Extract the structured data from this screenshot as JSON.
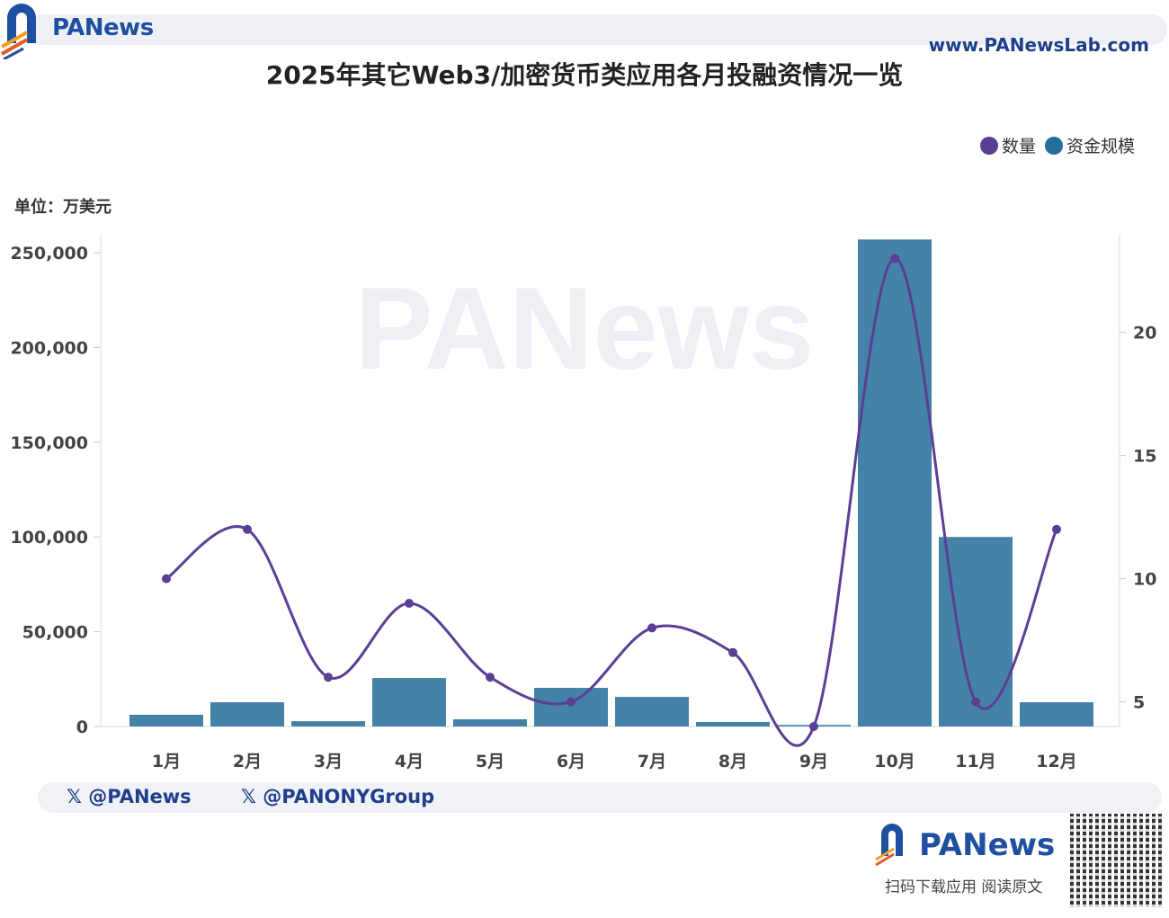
{
  "header": {
    "brand": "PANews",
    "site": "www.PANewsLab.com"
  },
  "footer": {
    "x_handle_1": "@PANews",
    "x_handle_2": "@PANONYGroup",
    "brand": "PANews",
    "qr_caption": "扫码下载应用  阅读原文"
  },
  "watermark": "PANews",
  "colors": {
    "count": "#5b3f94",
    "amount": "#3a7ba3",
    "brand": "#1f4fa0"
  },
  "chart_data": {
    "type": "bar+line",
    "title": "2025年其它Web3/加密货币类应用各月投融资情况一览",
    "unit_label": "单位：万美元",
    "categories": [
      "1月",
      "2月",
      "3月",
      "4月",
      "5月",
      "6月",
      "7月",
      "8月",
      "9月",
      "10月",
      "11月",
      "12月"
    ],
    "series": [
      {
        "name": "资金规模",
        "type": "bar",
        "axis": "left",
        "values": [
          6200,
          12800,
          2800,
          25600,
          3800,
          20400,
          15600,
          2400,
          800,
          257000,
          100000,
          12800
        ]
      },
      {
        "name": "数量",
        "type": "line",
        "axis": "right",
        "values": [
          10,
          12,
          6,
          9,
          6,
          5,
          8,
          7,
          4,
          23,
          5,
          12
        ]
      }
    ],
    "left_axis": {
      "range": [
        0,
        260000
      ],
      "ticks": [
        0,
        50000,
        100000,
        150000,
        200000,
        250000
      ],
      "tick_labels": [
        "0",
        "50,000",
        "100,000",
        "150,000",
        "200,000",
        "250,000"
      ]
    },
    "right_axis": {
      "range": [
        4,
        24
      ],
      "ticks": [
        5,
        10,
        15,
        20
      ],
      "tick_labels": [
        "5",
        "10",
        "15",
        "20"
      ]
    },
    "legend": {
      "position": "top-right",
      "items": [
        "数量",
        "资金规模"
      ]
    },
    "grid": false
  }
}
